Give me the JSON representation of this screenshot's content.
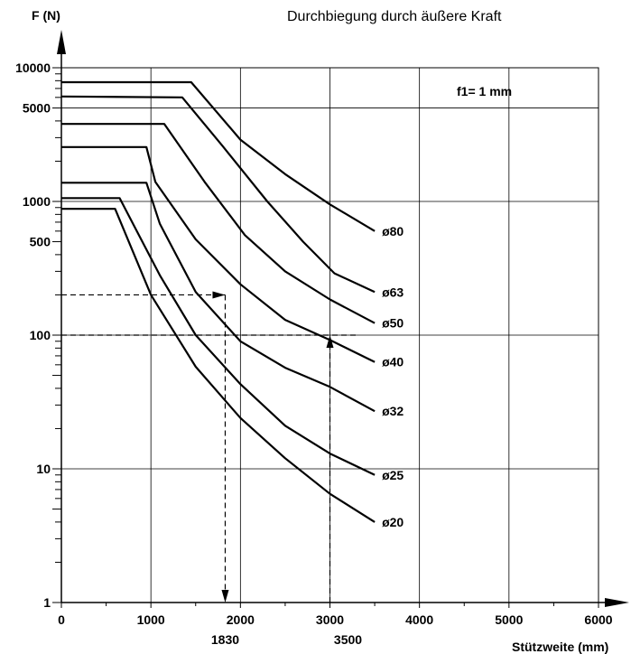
{
  "chart_data": {
    "type": "line",
    "title": "Durchbiegung durch äußere Kraft",
    "ylabel": "F (N)",
    "xlabel": "Stützweite (mm)",
    "note": "f1= 1 mm",
    "y_scale": "log",
    "xlim": [
      0,
      6000
    ],
    "ylim": [
      1,
      10000
    ],
    "grid": true,
    "x_ticks": [
      0,
      1000,
      2000,
      3000,
      4000,
      5000,
      6000
    ],
    "x_tick_labels": [
      "0",
      "1000",
      "2000",
      "3000",
      "4000",
      "5000",
      "6000"
    ],
    "y_tick_labels": [
      {
        "value": 1,
        "label": "1"
      },
      {
        "value": 10,
        "label": "10"
      },
      {
        "value": 100,
        "label": "100"
      },
      {
        "value": 500,
        "label": "500"
      },
      {
        "value": 1000,
        "label": "1000"
      },
      {
        "value": 5000,
        "label": "5000"
      },
      {
        "value": 10000,
        "label": "10000"
      }
    ],
    "series": [
      {
        "name": "ø80",
        "points": [
          [
            0,
            7800
          ],
          [
            1450,
            7800
          ],
          [
            2000,
            2900
          ],
          [
            2500,
            1600
          ],
          [
            3000,
            950
          ],
          [
            3500,
            600
          ]
        ]
      },
      {
        "name": "ø63",
        "points": [
          [
            0,
            6100
          ],
          [
            1350,
            6000
          ],
          [
            1800,
            2600
          ],
          [
            2300,
            1000
          ],
          [
            2700,
            500
          ],
          [
            3050,
            290
          ],
          [
            3500,
            210
          ]
        ]
      },
      {
        "name": "ø50",
        "points": [
          [
            0,
            3800
          ],
          [
            1150,
            3800
          ],
          [
            1600,
            1400
          ],
          [
            2050,
            560
          ],
          [
            2500,
            300
          ],
          [
            3000,
            185
          ],
          [
            3500,
            123
          ]
        ]
      },
      {
        "name": "ø40",
        "points": [
          [
            0,
            2550
          ],
          [
            950,
            2550
          ],
          [
            1050,
            1400
          ],
          [
            1500,
            520
          ],
          [
            2000,
            240
          ],
          [
            2500,
            130
          ],
          [
            3000,
            92
          ],
          [
            3500,
            63
          ]
        ]
      },
      {
        "name": "ø32",
        "points": [
          [
            0,
            1380
          ],
          [
            950,
            1380
          ],
          [
            1100,
            680
          ],
          [
            1500,
            210
          ],
          [
            2000,
            90
          ],
          [
            2500,
            57
          ],
          [
            3000,
            41
          ],
          [
            3500,
            27
          ]
        ]
      },
      {
        "name": "ø25",
        "points": [
          [
            0,
            1060
          ],
          [
            650,
            1060
          ],
          [
            1100,
            280
          ],
          [
            1500,
            100
          ],
          [
            2000,
            43
          ],
          [
            2500,
            21
          ],
          [
            3000,
            13
          ],
          [
            3500,
            9
          ]
        ]
      },
      {
        "name": "ø20",
        "points": [
          [
            0,
            880
          ],
          [
            600,
            880
          ],
          [
            1000,
            200
          ],
          [
            1500,
            58
          ],
          [
            2000,
            24
          ],
          [
            2500,
            12
          ],
          [
            3000,
            6.5
          ],
          [
            3500,
            4
          ]
        ]
      }
    ],
    "annotations": [
      {
        "x": 1830,
        "y": 200,
        "label": "1830"
      },
      {
        "x": 3000,
        "y": 100,
        "label": "3500"
      }
    ]
  }
}
